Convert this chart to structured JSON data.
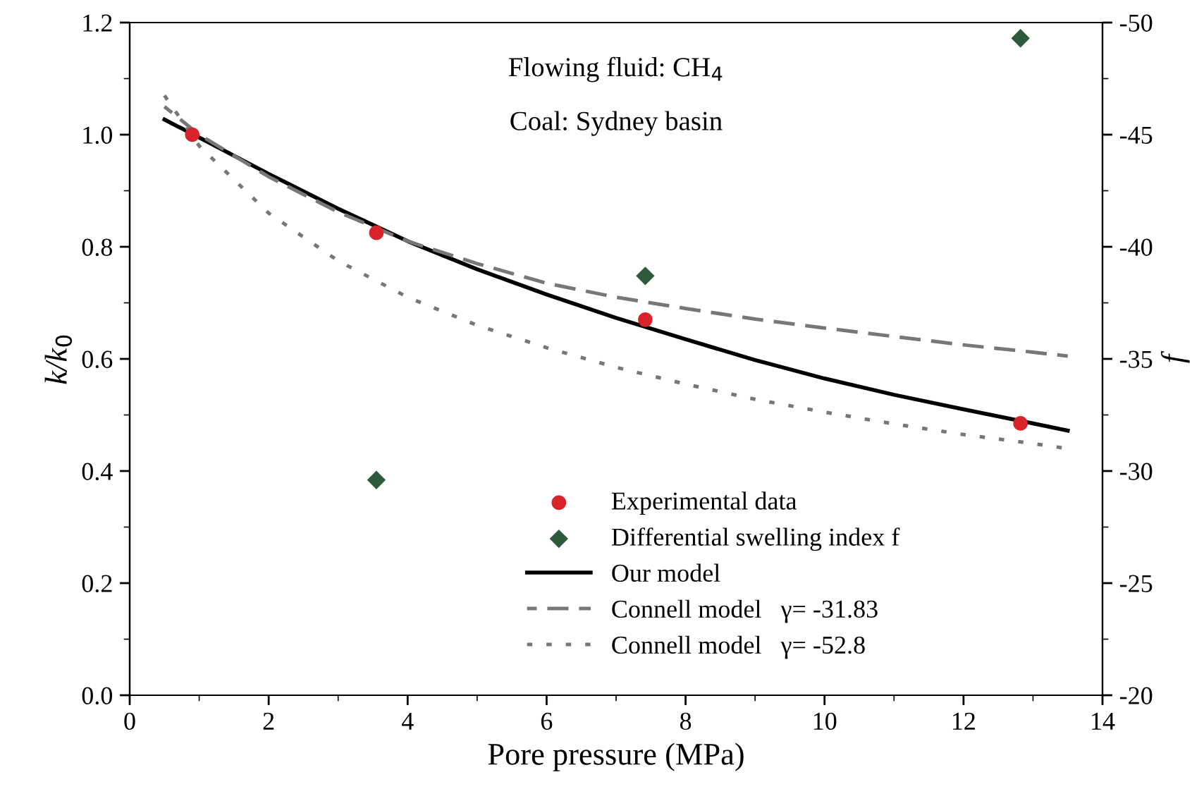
{
  "chart_data": {
    "type": "line",
    "xlabel": "Pore pressure (MPa)",
    "ylabel": "k/k$_{0}$",
    "y2label": "f",
    "annotations": [
      "Flowing fluid: CH$_{4}$",
      "Coal: Sydney basin"
    ],
    "xlim": [
      0,
      14
    ],
    "xticks": [
      0,
      2,
      4,
      6,
      8,
      10,
      12,
      14
    ],
    "ylim": [
      0,
      1.2
    ],
    "yticks": [
      {
        "value": 0,
        "label": "0.0"
      },
      0.2,
      0.4,
      0.6,
      0.8,
      {
        "value": 1,
        "label": "1.0"
      },
      1.2
    ],
    "y2lim": [
      -20,
      -50
    ],
    "y2ticks": [
      -20,
      -25,
      -30,
      -35,
      -40,
      -45,
      -50
    ],
    "legend": "bottom",
    "grid": false,
    "series": [
      {
        "name": "Experimental data",
        "type": "scatter",
        "marker": "circle",
        "color": "#d9232b",
        "x": [
          0.9,
          3.55,
          7.42,
          12.82
        ],
        "values": [
          1.0,
          0.825,
          0.67,
          0.485
        ]
      },
      {
        "name": "Differential swelling index f",
        "type": "scatter",
        "marker": "diamond",
        "color": "#2d5a3a",
        "axis": "y2",
        "x": [
          3.55,
          7.42,
          12.82
        ],
        "values": [
          -29.6,
          -38.7,
          -49.3
        ]
      },
      {
        "name": "Our model",
        "line_style": "solid",
        "color": "#000000",
        "x": [
          0.5,
          1,
          2,
          3,
          4,
          5,
          6,
          7,
          8,
          9,
          10,
          11,
          12,
          13,
          13.5
        ],
        "values": [
          1.027,
          0.995,
          0.93,
          0.868,
          0.81,
          0.76,
          0.715,
          0.673,
          0.635,
          0.598,
          0.565,
          0.536,
          0.51,
          0.485,
          0.472
        ]
      },
      {
        "name": "Connell model   γ= -31.83",
        "line_style": "dashed",
        "color": "#777777",
        "x": [
          0.5,
          1,
          2,
          3,
          4,
          5,
          6,
          7,
          8,
          9,
          10,
          11,
          12,
          13,
          13.5
        ],
        "values": [
          1.05,
          1.0,
          0.925,
          0.862,
          0.81,
          0.77,
          0.735,
          0.71,
          0.69,
          0.671,
          0.655,
          0.64,
          0.625,
          0.612,
          0.605
        ]
      },
      {
        "name": "Connell model   γ= -52.8",
        "line_style": "dotted",
        "color": "#777777",
        "x": [
          0.5,
          1,
          2,
          3,
          4,
          5,
          6,
          7,
          8,
          9,
          10,
          11,
          12,
          13,
          13.5
        ],
        "values": [
          1.07,
          0.98,
          0.86,
          0.775,
          0.71,
          0.66,
          0.62,
          0.585,
          0.555,
          0.528,
          0.505,
          0.484,
          0.465,
          0.449,
          0.44
        ]
      }
    ]
  }
}
